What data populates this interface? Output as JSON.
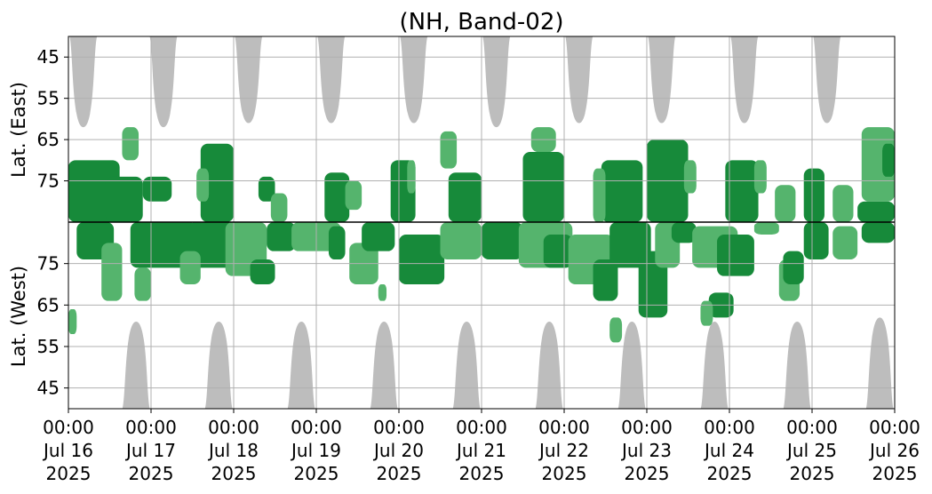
{
  "chart_data": {
    "type": "heatmap",
    "title": "(NH, Band-02)",
    "xlabel": "",
    "ylabel_top": "Lat. (East)",
    "ylabel_bottom": "Lat. (West)",
    "grid": true,
    "x_ticks": [
      {
        "line1": "00:00",
        "line2": "Jul 16",
        "line3": "2025"
      },
      {
        "line1": "00:00",
        "line2": "Jul 17",
        "line3": "2025"
      },
      {
        "line1": "00:00",
        "line2": "Jul 18",
        "line3": "2025"
      },
      {
        "line1": "00:00",
        "line2": "Jul 19",
        "line3": "2025"
      },
      {
        "line1": "00:00",
        "line2": "Jul 20",
        "line3": "2025"
      },
      {
        "line1": "00:00",
        "line2": "Jul 21",
        "line3": "2025"
      },
      {
        "line1": "00:00",
        "line2": "Jul 22",
        "line3": "2025"
      },
      {
        "line1": "00:00",
        "line2": "Jul 23",
        "line3": "2025"
      },
      {
        "line1": "00:00",
        "line2": "Jul 24",
        "line3": "2025"
      },
      {
        "line1": "00:00",
        "line2": "Jul 25",
        "line3": "2025"
      },
      {
        "line1": "00:00",
        "line2": "Jul 26",
        "line3": "2025"
      }
    ],
    "x_range_days": [
      0,
      10
    ],
    "y_ticks_east": [
      "45",
      "55",
      "65",
      "75"
    ],
    "y_ticks_west": [
      "75",
      "65",
      "55",
      "45"
    ],
    "y_range_lat": [
      40,
      85
    ],
    "colors": {
      "daylight": "#bdbdbd",
      "strong": "#178a3a",
      "moderate": "#55b46d",
      "divider": "#000000",
      "grid": "#b0b0b0"
    },
    "daylight_east": [
      {
        "center": 0.18,
        "halfwidth": 0.18,
        "min_lat": 62
      },
      {
        "center": 1.15,
        "halfwidth": 0.18,
        "min_lat": 62
      },
      {
        "center": 2.18,
        "halfwidth": 0.18,
        "min_lat": 61
      },
      {
        "center": 3.18,
        "halfwidth": 0.18,
        "min_lat": 61
      },
      {
        "center": 4.18,
        "halfwidth": 0.18,
        "min_lat": 61
      },
      {
        "center": 5.18,
        "halfwidth": 0.18,
        "min_lat": 62
      },
      {
        "center": 6.18,
        "halfwidth": 0.18,
        "min_lat": 61
      },
      {
        "center": 7.18,
        "halfwidth": 0.18,
        "min_lat": 61
      },
      {
        "center": 8.18,
        "halfwidth": 0.18,
        "min_lat": 61
      },
      {
        "center": 9.18,
        "halfwidth": 0.18,
        "min_lat": 61
      }
    ],
    "daylight_west": [
      {
        "center": 0.82,
        "halfwidth": 0.18,
        "min_lat": 61
      },
      {
        "center": 1.82,
        "halfwidth": 0.18,
        "min_lat": 61
      },
      {
        "center": 2.82,
        "halfwidth": 0.18,
        "min_lat": 61
      },
      {
        "center": 3.82,
        "halfwidth": 0.18,
        "min_lat": 61
      },
      {
        "center": 4.82,
        "halfwidth": 0.18,
        "min_lat": 61
      },
      {
        "center": 5.82,
        "halfwidth": 0.18,
        "min_lat": 61
      },
      {
        "center": 6.82,
        "halfwidth": 0.18,
        "min_lat": 61
      },
      {
        "center": 7.82,
        "halfwidth": 0.18,
        "min_lat": 61
      },
      {
        "center": 8.82,
        "halfwidth": 0.18,
        "min_lat": 61
      },
      {
        "center": 9.82,
        "halfwidth": 0.18,
        "min_lat": 62
      }
    ],
    "activity_east": [
      {
        "t0": 0.0,
        "t1": 0.62,
        "lat_min": 70,
        "lat_max": 85,
        "level": "strong"
      },
      {
        "t0": 0.45,
        "t1": 0.9,
        "lat_min": 74,
        "lat_max": 85,
        "level": "strong"
      },
      {
        "t0": 0.65,
        "t1": 0.85,
        "lat_min": 62,
        "lat_max": 70,
        "level": "moderate"
      },
      {
        "t0": 0.9,
        "t1": 1.25,
        "lat_min": 74,
        "lat_max": 80,
        "level": "strong"
      },
      {
        "t0": 1.6,
        "t1": 2.0,
        "lat_min": 66,
        "lat_max": 85,
        "level": "strong"
      },
      {
        "t0": 1.55,
        "t1": 1.7,
        "lat_min": 72,
        "lat_max": 80,
        "level": "moderate"
      },
      {
        "t0": 2.3,
        "t1": 2.5,
        "lat_min": 74,
        "lat_max": 80,
        "level": "strong"
      },
      {
        "t0": 2.45,
        "t1": 2.65,
        "lat_min": 78,
        "lat_max": 85,
        "level": "moderate"
      },
      {
        "t0": 3.1,
        "t1": 3.4,
        "lat_min": 73,
        "lat_max": 85,
        "level": "strong"
      },
      {
        "t0": 3.35,
        "t1": 3.55,
        "lat_min": 75,
        "lat_max": 82,
        "level": "moderate"
      },
      {
        "t0": 3.9,
        "t1": 4.2,
        "lat_min": 70,
        "lat_max": 85,
        "level": "strong"
      },
      {
        "t0": 4.1,
        "t1": 4.2,
        "lat_min": 70,
        "lat_max": 78,
        "level": "moderate"
      },
      {
        "t0": 4.5,
        "t1": 4.7,
        "lat_min": 63,
        "lat_max": 72,
        "level": "moderate"
      },
      {
        "t0": 4.6,
        "t1": 5.0,
        "lat_min": 73,
        "lat_max": 85,
        "level": "strong"
      },
      {
        "t0": 5.5,
        "t1": 6.0,
        "lat_min": 68,
        "lat_max": 85,
        "level": "strong"
      },
      {
        "t0": 5.6,
        "t1": 5.9,
        "lat_min": 62,
        "lat_max": 68,
        "level": "moderate"
      },
      {
        "t0": 6.45,
        "t1": 6.95,
        "lat_min": 70,
        "lat_max": 85,
        "level": "strong"
      },
      {
        "t0": 6.35,
        "t1": 6.5,
        "lat_min": 72,
        "lat_max": 85,
        "level": "moderate"
      },
      {
        "t0": 7.0,
        "t1": 7.5,
        "lat_min": 65,
        "lat_max": 85,
        "level": "strong"
      },
      {
        "t0": 7.45,
        "t1": 7.6,
        "lat_min": 70,
        "lat_max": 78,
        "level": "moderate"
      },
      {
        "t0": 7.95,
        "t1": 8.35,
        "lat_min": 70,
        "lat_max": 85,
        "level": "strong"
      },
      {
        "t0": 8.3,
        "t1": 8.45,
        "lat_min": 70,
        "lat_max": 78,
        "level": "moderate"
      },
      {
        "t0": 8.55,
        "t1": 8.8,
        "lat_min": 76,
        "lat_max": 85,
        "level": "moderate"
      },
      {
        "t0": 8.9,
        "t1": 9.15,
        "lat_min": 72,
        "lat_max": 85,
        "level": "strong"
      },
      {
        "t0": 9.25,
        "t1": 9.5,
        "lat_min": 76,
        "lat_max": 85,
        "level": "moderate"
      },
      {
        "t0": 9.55,
        "t1": 10.0,
        "lat_min": 80,
        "lat_max": 85,
        "level": "strong"
      },
      {
        "t0": 9.6,
        "t1": 10.0,
        "lat_min": 62,
        "lat_max": 80,
        "level": "moderate"
      },
      {
        "t0": 9.85,
        "t1": 10.0,
        "lat_min": 66,
        "lat_max": 74,
        "level": "strong"
      }
    ],
    "activity_west": [
      {
        "t0": 0.1,
        "t1": 0.55,
        "lat_min": 76,
        "lat_max": 85,
        "level": "strong"
      },
      {
        "t0": 0.0,
        "t1": 0.1,
        "lat_min": 58,
        "lat_max": 64,
        "level": "moderate"
      },
      {
        "t0": 0.4,
        "t1": 0.65,
        "lat_min": 66,
        "lat_max": 80,
        "level": "moderate"
      },
      {
        "t0": 0.75,
        "t1": 1.55,
        "lat_min": 74,
        "lat_max": 85,
        "level": "strong"
      },
      {
        "t0": 0.8,
        "t1": 1.0,
        "lat_min": 66,
        "lat_max": 74,
        "level": "moderate"
      },
      {
        "t0": 1.45,
        "t1": 2.0,
        "lat_min": 74,
        "lat_max": 85,
        "level": "strong"
      },
      {
        "t0": 1.35,
        "t1": 1.6,
        "lat_min": 70,
        "lat_max": 78,
        "level": "moderate"
      },
      {
        "t0": 1.9,
        "t1": 2.4,
        "lat_min": 72,
        "lat_max": 85,
        "level": "moderate"
      },
      {
        "t0": 2.2,
        "t1": 2.5,
        "lat_min": 70,
        "lat_max": 76,
        "level": "strong"
      },
      {
        "t0": 2.4,
        "t1": 2.75,
        "lat_min": 78,
        "lat_max": 85,
        "level": "strong"
      },
      {
        "t0": 2.7,
        "t1": 3.3,
        "lat_min": 78,
        "lat_max": 85,
        "level": "moderate"
      },
      {
        "t0": 3.15,
        "t1": 3.35,
        "lat_min": 76,
        "lat_max": 84,
        "level": "strong"
      },
      {
        "t0": 3.4,
        "t1": 3.75,
        "lat_min": 70,
        "lat_max": 80,
        "level": "moderate"
      },
      {
        "t0": 3.55,
        "t1": 3.95,
        "lat_min": 78,
        "lat_max": 85,
        "level": "strong"
      },
      {
        "t0": 3.75,
        "t1": 3.85,
        "lat_min": 66,
        "lat_max": 70,
        "level": "moderate"
      },
      {
        "t0": 4.0,
        "t1": 4.55,
        "lat_min": 70,
        "lat_max": 82,
        "level": "strong"
      },
      {
        "t0": 4.5,
        "t1": 5.0,
        "lat_min": 76,
        "lat_max": 85,
        "level": "moderate"
      },
      {
        "t0": 5.0,
        "t1": 5.5,
        "lat_min": 76,
        "lat_max": 85,
        "level": "strong"
      },
      {
        "t0": 5.45,
        "t1": 6.1,
        "lat_min": 74,
        "lat_max": 85,
        "level": "moderate"
      },
      {
        "t0": 5.75,
        "t1": 6.1,
        "lat_min": 74,
        "lat_max": 82,
        "level": "strong"
      },
      {
        "t0": 6.05,
        "t1": 6.6,
        "lat_min": 70,
        "lat_max": 82,
        "level": "moderate"
      },
      {
        "t0": 6.35,
        "t1": 6.65,
        "lat_min": 66,
        "lat_max": 76,
        "level": "strong"
      },
      {
        "t0": 6.55,
        "t1": 7.05,
        "lat_min": 74,
        "lat_max": 85,
        "level": "strong"
      },
      {
        "t0": 6.55,
        "t1": 6.7,
        "lat_min": 56,
        "lat_max": 62,
        "level": "moderate"
      },
      {
        "t0": 6.9,
        "t1": 7.25,
        "lat_min": 62,
        "lat_max": 78,
        "level": "strong"
      },
      {
        "t0": 7.1,
        "t1": 7.4,
        "lat_min": 74,
        "lat_max": 85,
        "level": "moderate"
      },
      {
        "t0": 7.3,
        "t1": 7.6,
        "lat_min": 80,
        "lat_max": 85,
        "level": "strong"
      },
      {
        "t0": 7.55,
        "t1": 8.1,
        "lat_min": 74,
        "lat_max": 84,
        "level": "moderate"
      },
      {
        "t0": 7.75,
        "t1": 8.05,
        "lat_min": 62,
        "lat_max": 68,
        "level": "strong"
      },
      {
        "t0": 7.65,
        "t1": 7.8,
        "lat_min": 60,
        "lat_max": 66,
        "level": "moderate"
      },
      {
        "t0": 7.85,
        "t1": 8.3,
        "lat_min": 72,
        "lat_max": 82,
        "level": "strong"
      },
      {
        "t0": 8.3,
        "t1": 8.6,
        "lat_min": 82,
        "lat_max": 85,
        "level": "moderate"
      },
      {
        "t0": 8.6,
        "t1": 8.85,
        "lat_min": 66,
        "lat_max": 76,
        "level": "moderate"
      },
      {
        "t0": 8.65,
        "t1": 8.9,
        "lat_min": 70,
        "lat_max": 78,
        "level": "strong"
      },
      {
        "t0": 8.9,
        "t1": 9.2,
        "lat_min": 76,
        "lat_max": 85,
        "level": "strong"
      },
      {
        "t0": 9.25,
        "t1": 9.55,
        "lat_min": 76,
        "lat_max": 84,
        "level": "moderate"
      },
      {
        "t0": 9.6,
        "t1": 10.0,
        "lat_min": 80,
        "lat_max": 85,
        "level": "strong"
      }
    ]
  }
}
